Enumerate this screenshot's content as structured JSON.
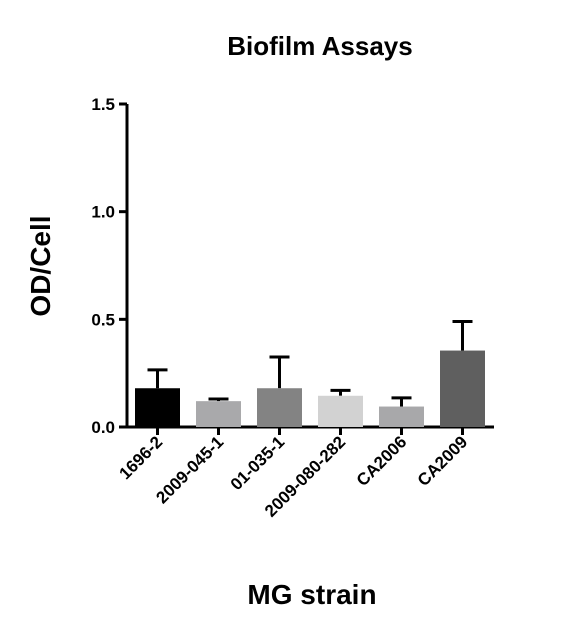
{
  "chart_data": {
    "type": "bar",
    "title": "Biofilm Assays",
    "xlabel": "MG strain",
    "ylabel": "OD/Cell",
    "ylim": [
      0,
      1.5
    ],
    "yticks": [
      "0.0",
      "0.5",
      "1.0",
      "1.5"
    ],
    "categories": [
      "1696-2",
      "2009-045-1",
      "01-035-1",
      "2009-080-282",
      "CA2006",
      "CA2009"
    ],
    "values": [
      0.18,
      0.12,
      0.18,
      0.145,
      0.095,
      0.355
    ],
    "errors": [
      0.085,
      0.01,
      0.145,
      0.025,
      0.04,
      0.135
    ],
    "colors": [
      "#000000",
      "#a9a9ab",
      "#838383",
      "#d2d2d2",
      "#a8a8aa",
      "#5f5f5f"
    ],
    "grid": false,
    "legend": "none"
  }
}
